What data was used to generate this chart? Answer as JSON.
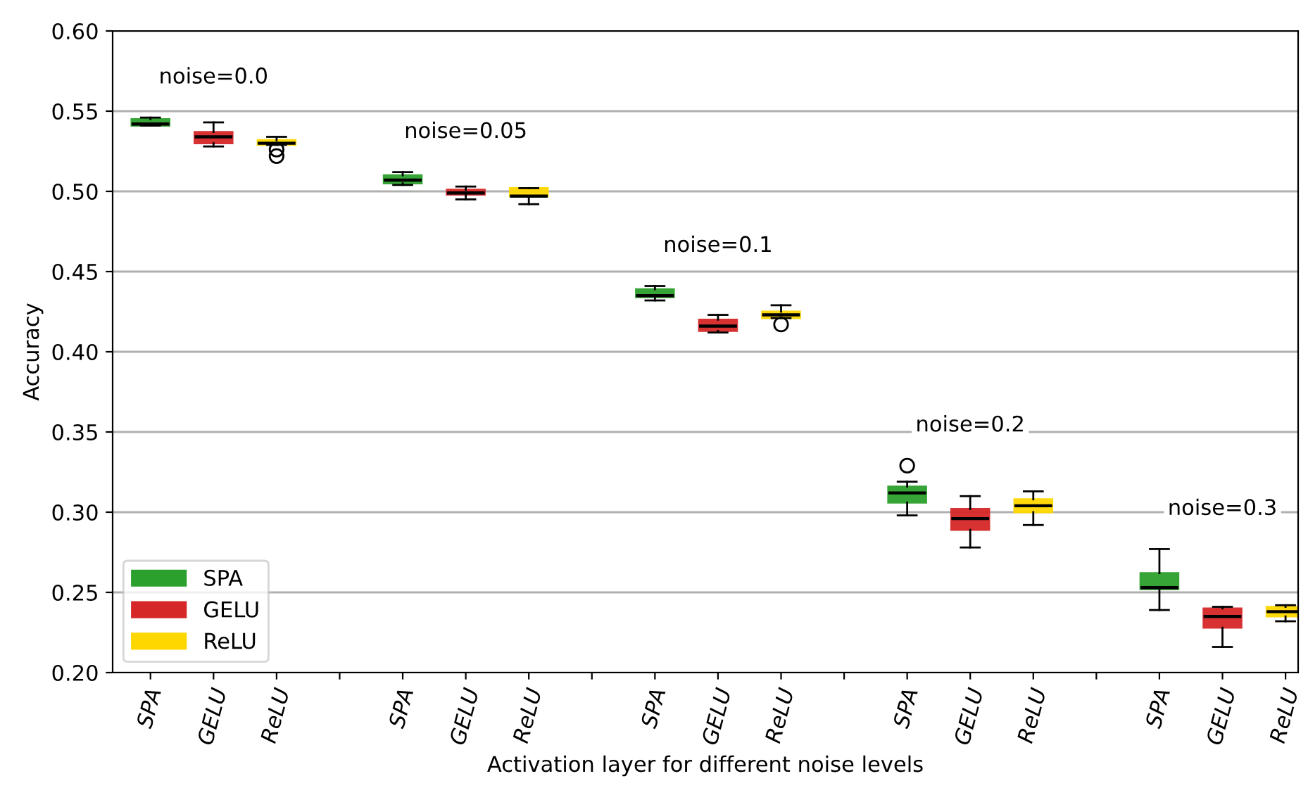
{
  "chart_data": {
    "type": "box",
    "xlabel": "Activation layer for different noise levels",
    "ylabel": "Accuracy",
    "categories": [
      "SPA",
      "GELU",
      "ReLU",
      null,
      "SPA",
      "GELU",
      "ReLU",
      null,
      "SPA",
      "GELU",
      "ReLU",
      null,
      "SPA",
      "GELU",
      "ReLU",
      null,
      "SPA",
      "GELU",
      "ReLU"
    ],
    "annotations": [
      "noise=0.0",
      "noise=0.05",
      "noise=0.1",
      "noise=0.2",
      "noise=0.3"
    ],
    "ylim": [
      0.2,
      0.6
    ],
    "yticks": [
      {
        "value": 0.2,
        "label": "0.20"
      },
      0.25,
      {
        "value": 0.3,
        "label": "0.30"
      },
      0.35,
      {
        "value": 0.4,
        "label": "0.40"
      },
      0.45,
      {
        "value": 0.5,
        "label": "0.50"
      },
      0.55,
      {
        "value": 0.6,
        "label": "0.60"
      }
    ],
    "grid": "y",
    "legend": "bottom left",
    "series": [
      {
        "name": "SPA",
        "color": "#2ca02c",
        "boxes": [
          {
            "low": 0.541,
            "q1": 0.541,
            "median": 0.542,
            "q3": 0.545,
            "high": 0.546
          },
          null,
          null,
          null,
          {
            "low": 0.504,
            "q1": 0.505,
            "median": 0.507,
            "q3": 0.51,
            "high": 0.512
          },
          null,
          null,
          null,
          {
            "low": 0.432,
            "q1": 0.434,
            "median": 0.435,
            "q3": 0.439,
            "high": 0.441
          },
          null,
          null,
          null,
          {
            "low": 0.298,
            "q1": 0.306,
            "median": 0.312,
            "q3": 0.316,
            "high": 0.319,
            "outliers": [
              0.329
            ]
          },
          null,
          null,
          null,
          {
            "low": 0.239,
            "q1": 0.252,
            "median": 0.253,
            "q3": 0.262,
            "high": 0.277
          },
          null,
          null
        ]
      },
      {
        "name": "GELU",
        "color": "#d62728",
        "boxes": [
          null,
          {
            "low": 0.528,
            "q1": 0.53,
            "median": 0.534,
            "q3": 0.537,
            "high": 0.543
          },
          null,
          null,
          null,
          {
            "low": 0.495,
            "q1": 0.498,
            "median": 0.499,
            "q3": 0.501,
            "high": 0.503
          },
          null,
          null,
          null,
          {
            "low": 0.412,
            "q1": 0.413,
            "median": 0.416,
            "q3": 0.42,
            "high": 0.423
          },
          null,
          null,
          null,
          {
            "low": 0.278,
            "q1": 0.289,
            "median": 0.296,
            "q3": 0.302,
            "high": 0.31
          },
          null,
          null,
          null,
          {
            "low": 0.216,
            "q1": 0.228,
            "median": 0.235,
            "q3": 0.24,
            "high": 0.241
          },
          null
        ]
      },
      {
        "name": "ReLU",
        "color": "#ffd700",
        "boxes": [
          null,
          null,
          {
            "low": 0.529,
            "q1": 0.529,
            "median": 0.53,
            "q3": 0.532,
            "high": 0.534,
            "outliers": [
              0.526,
              0.522
            ]
          },
          null,
          null,
          null,
          {
            "low": 0.492,
            "q1": 0.497,
            "median": 0.497,
            "q3": 0.502,
            "high": 0.502
          },
          null,
          null,
          null,
          {
            "low": 0.421,
            "q1": 0.421,
            "median": 0.423,
            "q3": 0.425,
            "high": 0.429,
            "outliers": [
              0.417
            ]
          },
          null,
          null,
          null,
          {
            "low": 0.292,
            "q1": 0.3,
            "median": 0.304,
            "q3": 0.308,
            "high": 0.313
          },
          null,
          null,
          null,
          {
            "low": 0.232,
            "q1": 0.235,
            "median": 0.238,
            "q3": 0.241,
            "high": 0.242
          }
        ]
      }
    ]
  }
}
